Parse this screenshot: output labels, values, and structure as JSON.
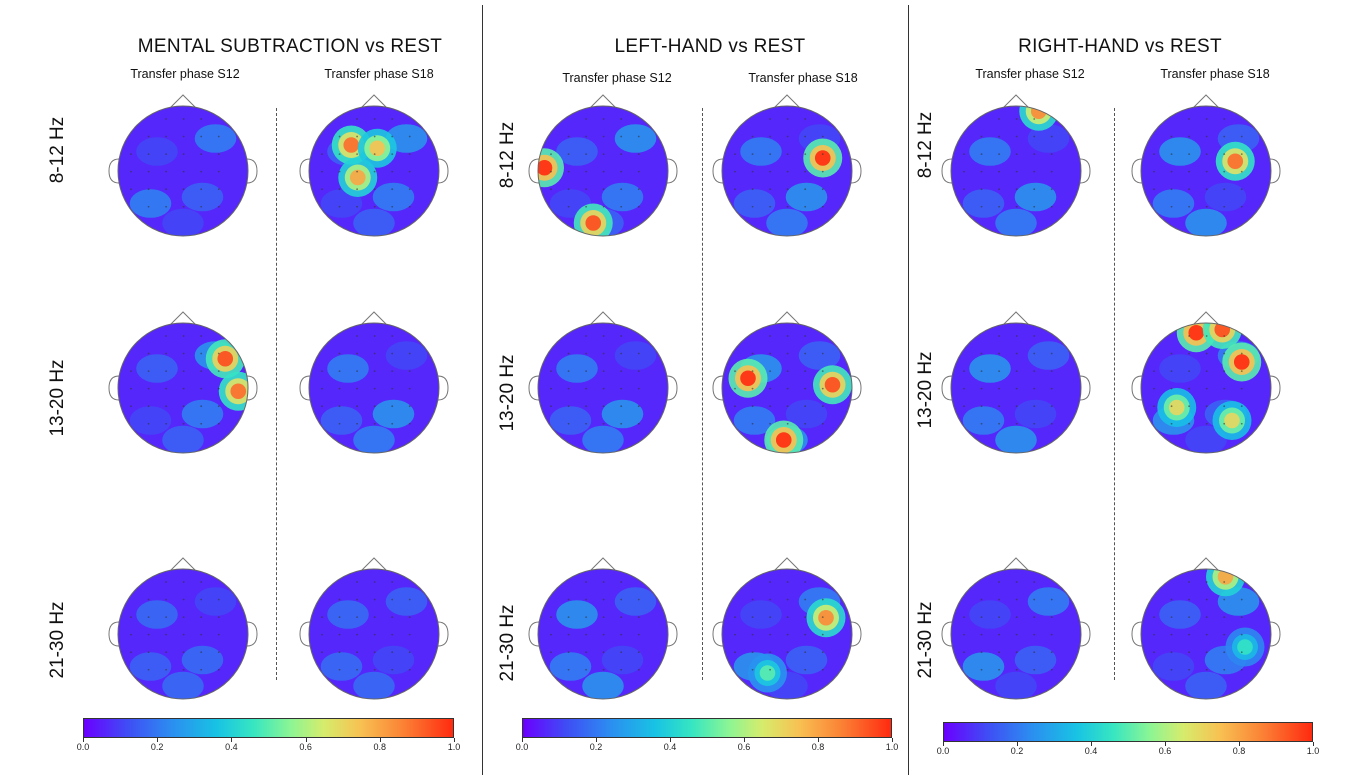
{
  "chart_data": {
    "type": "heatmap",
    "panels": [
      {
        "title": "MENTAL SUBTRACTION vs REST",
        "columns": [
          "Transfer phase S12",
          "Transfer phase S18"
        ]
      },
      {
        "title": "LEFT-HAND vs REST",
        "columns": [
          "Transfer phase S12",
          "Transfer phase S18"
        ]
      },
      {
        "title": "RIGHT-HAND vs REST",
        "columns": [
          "Transfer phase S12",
          "Transfer phase S18"
        ]
      }
    ],
    "rows": [
      "8-12 Hz",
      "13-20  Hz",
      "21-30 Hz"
    ],
    "colorbar": {
      "min": 0.0,
      "max": 1.0,
      "ticks": [
        "0.0",
        "0.2",
        "0.4",
        "0.6",
        "0.8",
        "1.0"
      ],
      "colormap": "rainbow",
      "colors": [
        "#6a00ff",
        "#2b8ff0",
        "#37e6c1",
        "#d6ec6c",
        "#fb7f34",
        "#ff2a10"
      ]
    },
    "maps": [
      [
        [
          {
            "peak": 0.25,
            "hot": []
          },
          {
            "peak": 1.0,
            "hot": [
              [
                -0.35,
                -0.4,
                0.9
              ],
              [
                -0.25,
                0.1,
                0.8
              ],
              [
                0.05,
                -0.35,
                0.75
              ]
            ]
          }
        ],
        [
          {
            "peak": 1.0,
            "hot": [
              [
                0.65,
                -0.45,
                0.95
              ],
              [
                0.85,
                0.05,
                0.9
              ]
            ]
          },
          {
            "peak": 0.3,
            "hot": []
          }
        ],
        [
          {
            "peak": 0.2,
            "hot": []
          },
          {
            "peak": 0.2,
            "hot": []
          }
        ]
      ],
      [
        [
          {
            "peak": 1.0,
            "hot": [
              [
                -0.9,
                -0.05,
                1.0
              ],
              [
                -0.15,
                0.8,
                0.95
              ]
            ]
          },
          {
            "peak": 1.0,
            "hot": [
              [
                0.55,
                -0.2,
                1.0
              ]
            ]
          }
        ],
        [
          {
            "peak": 0.4,
            "hot": []
          },
          {
            "peak": 1.0,
            "hot": [
              [
                -0.6,
                -0.15,
                1.0
              ],
              [
                0.7,
                -0.05,
                0.95
              ],
              [
                -0.05,
                0.8,
                1.0
              ]
            ]
          }
        ],
        [
          {
            "peak": 0.35,
            "hot": []
          },
          {
            "peak": 0.8,
            "hot": [
              [
                0.6,
                -0.25,
                0.85
              ],
              [
                -0.3,
                0.6,
                0.5
              ]
            ]
          }
        ]
      ],
      [
        [
          {
            "peak": 0.9,
            "hot": [
              [
                0.35,
                -0.92,
                0.85
              ]
            ]
          },
          {
            "peak": 0.95,
            "hot": [
              [
                0.45,
                -0.15,
                0.9
              ]
            ]
          }
        ],
        [
          {
            "peak": 0.3,
            "hot": []
          },
          {
            "peak": 1.0,
            "hot": [
              [
                -0.15,
                -0.85,
                1.0
              ],
              [
                0.25,
                -0.9,
                0.95
              ],
              [
                0.55,
                -0.4,
                1.0
              ],
              [
                -0.45,
                0.3,
                0.7
              ],
              [
                0.4,
                0.5,
                0.7
              ]
            ]
          }
        ],
        [
          {
            "peak": 0.5,
            "hot": []
          },
          {
            "peak": 0.85,
            "hot": [
              [
                0.3,
                -0.88,
                0.8
              ],
              [
                0.6,
                0.2,
                0.45
              ]
            ]
          }
        ]
      ]
    ]
  }
}
